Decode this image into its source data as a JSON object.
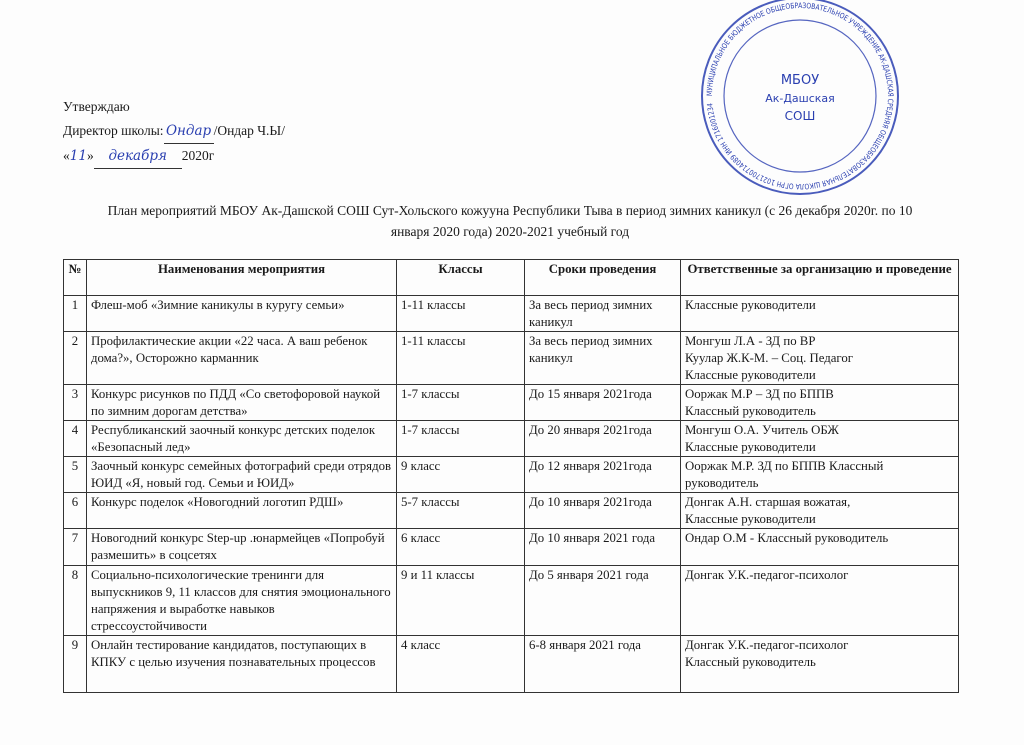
{
  "approval": {
    "line1": "Утверждаю",
    "line2_prefix": "Директор школы:",
    "line2_name": "/Ондар Ч.Ы/",
    "line3_open": "«",
    "line3_day": "11",
    "line3_close": "»",
    "line3_month": "декабря",
    "line3_year": "2020г",
    "signature": "Ондар"
  },
  "seal": {
    "text": "МУНИЦИПАЛЬНОЕ БЮДЖЕТНОЕ ОБЩЕОБРАЗОВАТЕЛЬНОЕ УЧРЕЖДЕНИЕ АК-ДАШСКАЯ СРЕДНЯЯ ОБЩЕОБРАЗОВАТЕЛЬНАЯ ШКОЛА ОГРН 1021700714089 ИНН 1716001234",
    "center_line1": "МБОУ",
    "center_line2": "Ак-Дашская",
    "center_line3": "СОШ",
    "color": "#2a3fb0"
  },
  "title": {
    "line1": "План мероприятий МБОУ Ак-Дашской СОШ Сут-Хольского кожууна Республики Тыва в период зимних каникул (с 26 декабря 2020г. по 10",
    "line2": "января 2020 года) 2020-2021 учебный год"
  },
  "table": {
    "headers": [
      "№",
      "Наименования мероприятия",
      "Классы",
      "Сроки проведения",
      "Ответственные за организацию и проведение"
    ],
    "rows": [
      {
        "num": "1",
        "event": "Флеш-моб «Зимние каникулы в куругу семьи»",
        "classes": "1-11 классы",
        "dates": "За весь период зимних каникул",
        "resp": [
          "Классные руководители"
        ]
      },
      {
        "num": "2",
        "event": "Профилактические акции «22 часа. А ваш ребенок дома?», Осторожно карманник",
        "classes": "1-11 классы",
        "dates": "За весь период зимних каникул",
        "resp": [
          "Монгуш Л.А - ЗД по ВР",
          "Куулар Ж.К-М. – Соц. Педагог",
          "Классные руководители"
        ]
      },
      {
        "num": "3",
        "event": "Конкурс рисунков по ПДД «Со светофоровой наукой по зимним дорогам детства»",
        "classes": "1-7 классы",
        "dates": "До 15 января 2021года",
        "resp": [
          "Ооржак М.Р – ЗД по БППВ",
          "Классный руководитель"
        ]
      },
      {
        "num": "4",
        "event": "Республиканский заочный конкурс детских поделок «Безопасный лед»",
        "classes": "1-7 классы",
        "dates": "До 20 января 2021года",
        "resp": [
          "Монгуш О.А. Учитель ОБЖ",
          "Классные руководители"
        ]
      },
      {
        "num": "5",
        "event": "Заочный конкурс семейных фотографий среди отрядов ЮИД «Я, новый год. Семьи и ЮИД»",
        "classes": "9 класс",
        "dates": "До 12 января 2021года",
        "resp": [
          "Ооржак М.Р. ЗД по БППВ Классный руководитель"
        ]
      },
      {
        "num": "6",
        "event": "Конкурс поделок «Новогодний логотип РДШ»",
        "classes": "5-7 классы",
        "dates": "До 10 января 2021года",
        "resp": [
          "Донгак А.Н. старшая вожатая,",
          "Классные руководители"
        ]
      },
      {
        "num": "7",
        "event": "Новогодний конкурс Step-up .юнармейцев «Попробуй размешить» в соцсетях",
        "classes": "6 класс",
        "dates": "До 10 января 2021 года",
        "resp": [
          "Ондар О.М - Классный руководитель"
        ]
      },
      {
        "num": "8",
        "event": "Социально-психологические тренинги для выпускников 9, 11 классов для снятия эмоционального напряжения и выработке навыков стрессоустойчивости",
        "classes": "9 и 11 классы",
        "dates": "До 5 января 2021 года",
        "resp": [
          "Донгак У.К.-педагог-психолог"
        ]
      },
      {
        "num": "9",
        "event": "Онлайн тестирование кандидатов, поступающих в КПКУ с целью изучения познавательных процессов",
        "classes": "4 класс",
        "dates": "6-8 января 2021 года",
        "resp": [
          "Донгак У.К.-педагог-психолог",
          "Классный руководитель"
        ]
      }
    ]
  }
}
